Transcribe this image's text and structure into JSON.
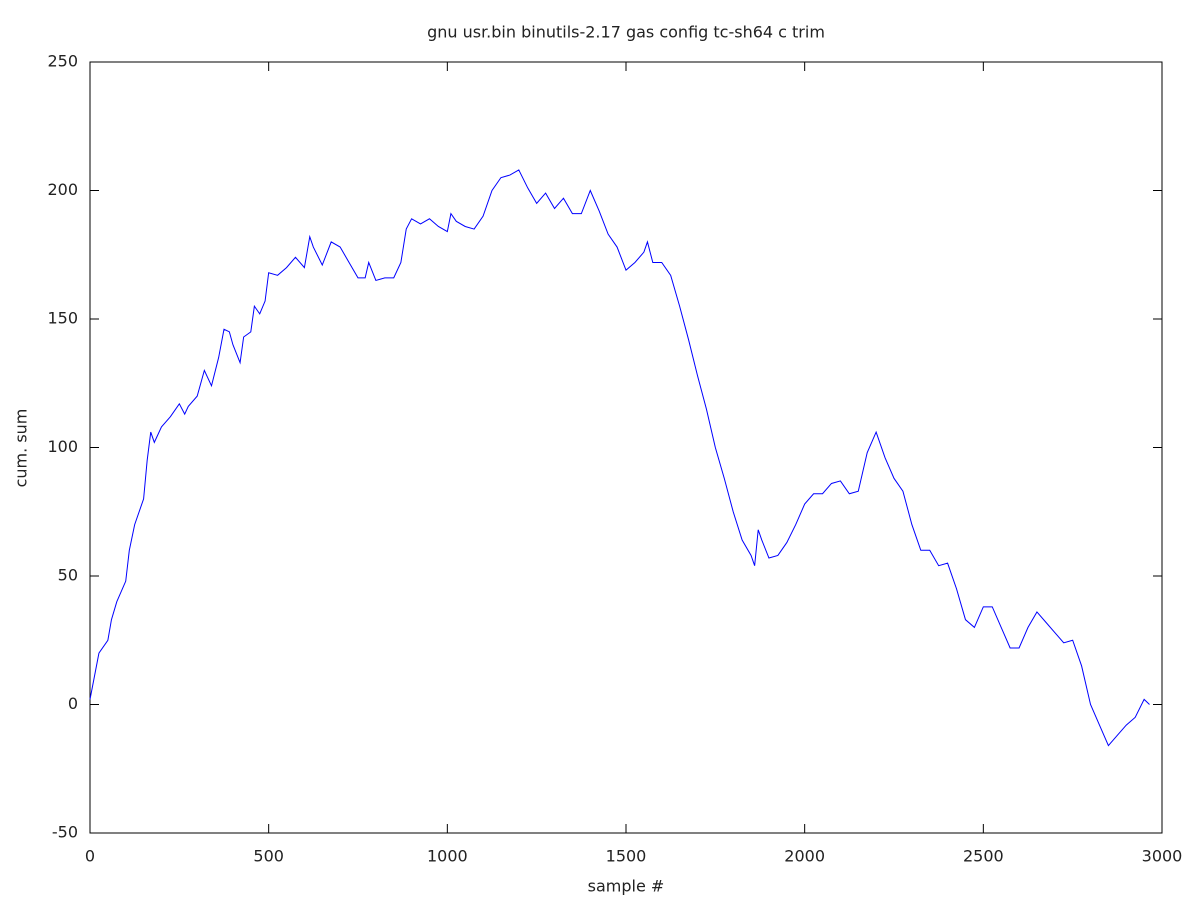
{
  "chart_data": {
    "type": "line",
    "title": "gnu usr.bin binutils-2.17 gas config tc-sh64 c trim",
    "x_label": "sample #",
    "y_label": "cum. sum",
    "color": "#0000ff",
    "xlim": [
      0,
      3000
    ],
    "xticks": [
      0,
      500,
      1000,
      1500,
      2000,
      2500,
      3000
    ],
    "ylim": [
      -50,
      250
    ],
    "yticks": [
      -50,
      0,
      50,
      100,
      150,
      200,
      250
    ],
    "x": [
      0,
      25,
      50,
      60,
      75,
      100,
      110,
      125,
      150,
      160,
      170,
      180,
      200,
      225,
      250,
      265,
      275,
      300,
      320,
      340,
      360,
      375,
      390,
      400,
      420,
      430,
      450,
      460,
      475,
      490,
      500,
      525,
      550,
      575,
      600,
      615,
      625,
      650,
      675,
      700,
      725,
      750,
      770,
      780,
      800,
      825,
      850,
      870,
      885,
      900,
      925,
      950,
      975,
      1000,
      1010,
      1025,
      1050,
      1075,
      1100,
      1125,
      1150,
      1175,
      1200,
      1225,
      1250,
      1275,
      1300,
      1325,
      1350,
      1375,
      1400,
      1425,
      1450,
      1475,
      1500,
      1525,
      1550,
      1560,
      1575,
      1600,
      1625,
      1650,
      1675,
      1700,
      1725,
      1750,
      1775,
      1800,
      1825,
      1850,
      1860,
      1870,
      1880,
      1900,
      1925,
      1950,
      1975,
      2000,
      2025,
      2050,
      2075,
      2100,
      2125,
      2150,
      2175,
      2200,
      2225,
      2250,
      2275,
      2300,
      2325,
      2350,
      2375,
      2400,
      2425,
      2450,
      2475,
      2500,
      2525,
      2550,
      2575,
      2600,
      2625,
      2650,
      2675,
      2700,
      2725,
      2750,
      2775,
      2800,
      2825,
      2850,
      2875,
      2900,
      2925,
      2950,
      2965
    ],
    "values": [
      2,
      20,
      25,
      33,
      40,
      48,
      60,
      70,
      80,
      95,
      106,
      102,
      108,
      112,
      117,
      113,
      116,
      120,
      130,
      124,
      135,
      146,
      145,
      140,
      133,
      143,
      145,
      155,
      152,
      157,
      168,
      167,
      170,
      174,
      170,
      182,
      178,
      171,
      180,
      178,
      172,
      166,
      166,
      172,
      165,
      166,
      166,
      172,
      185,
      189,
      187,
      189,
      186,
      184,
      191,
      188,
      186,
      185,
      190,
      200,
      205,
      206,
      208,
      201,
      195,
      199,
      193,
      197,
      191,
      191,
      200,
      192,
      183,
      178,
      169,
      172,
      176,
      180,
      172,
      172,
      167,
      155,
      142,
      128,
      115,
      100,
      88,
      75,
      64,
      58,
      54,
      68,
      64,
      57,
      58,
      63,
      70,
      78,
      82,
      82,
      86,
      87,
      82,
      83,
      98,
      106,
      96,
      88,
      83,
      70,
      60,
      60,
      54,
      55,
      45,
      33,
      30,
      38,
      38,
      30,
      22,
      22,
      30,
      36,
      32,
      28,
      24,
      25,
      15,
      0,
      -8,
      -16,
      -12,
      -8,
      -5,
      2,
      0
    ]
  }
}
